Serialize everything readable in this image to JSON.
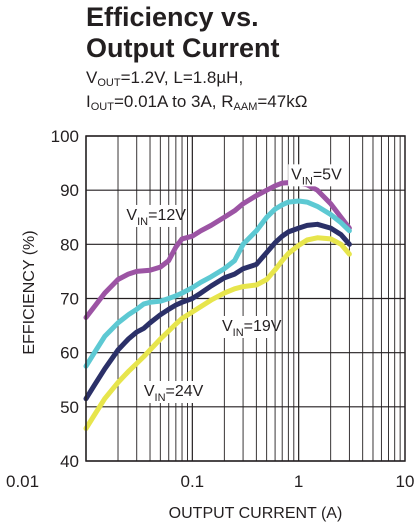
{
  "header": {
    "title_line1": "Efficiency vs.",
    "title_line2": "Output Current",
    "cond1": {
      "v": "V",
      "v_sub": "OUT",
      "rest1": "=1.2V, L=1.8µH,"
    },
    "cond2": {
      "i": "I",
      "i_sub": "OUT",
      "mid": "=0.01A to 3A, R",
      "r_sub": "AAM",
      "rest": "=47kΩ"
    }
  },
  "chart_data": {
    "type": "line",
    "title": "Efficiency vs. Output Current",
    "xlabel": "OUTPUT CURRENT (A)",
    "ylabel": "EFFICIENCY (%)",
    "xscale": "log",
    "xlim": [
      0.01,
      10
    ],
    "ylim": [
      40,
      100
    ],
    "xticks": [
      {
        "value": 0.01,
        "label": "0.01"
      },
      {
        "value": 0.1,
        "label": "0.1"
      },
      {
        "value": 1,
        "label": "1"
      },
      {
        "value": 10,
        "label": "10"
      }
    ],
    "yticks": [
      40,
      50,
      60,
      70,
      80,
      90,
      100
    ],
    "grid": true,
    "series": [
      {
        "name": "VIN=5V",
        "label_main": "V",
        "label_sub": "IN",
        "label_rest": "=5V",
        "color": "#9c54a4",
        "label_at": [
          0.85,
          92
        ],
        "points": [
          [
            0.01,
            66.5
          ],
          [
            0.012,
            68.5
          ],
          [
            0.015,
            71
          ],
          [
            0.02,
            73.5
          ],
          [
            0.025,
            74.5
          ],
          [
            0.03,
            75
          ],
          [
            0.04,
            75.2
          ],
          [
            0.05,
            75.8
          ],
          [
            0.06,
            77
          ],
          [
            0.07,
            79.5
          ],
          [
            0.08,
            81
          ],
          [
            0.1,
            81.5
          ],
          [
            0.12,
            82.5
          ],
          [
            0.15,
            83.5
          ],
          [
            0.2,
            85
          ],
          [
            0.25,
            86.2
          ],
          [
            0.3,
            87.5
          ],
          [
            0.4,
            89
          ],
          [
            0.5,
            90
          ],
          [
            0.6,
            90.8
          ],
          [
            0.7,
            91.3
          ],
          [
            0.8,
            91.4
          ],
          [
            1.0,
            91.3
          ],
          [
            1.2,
            91
          ],
          [
            1.5,
            90
          ],
          [
            2.0,
            87.5
          ],
          [
            2.5,
            85
          ],
          [
            3.0,
            83
          ]
        ]
      },
      {
        "name": "VIN=12V",
        "label_main": "V",
        "label_sub": "IN",
        "label_rest": "=12V",
        "color": "#5dc9d3",
        "label_at": [
          0.024,
          84.5
        ],
        "points": [
          [
            0.01,
            57.5
          ],
          [
            0.012,
            60
          ],
          [
            0.015,
            63
          ],
          [
            0.02,
            65.5
          ],
          [
            0.025,
            67
          ],
          [
            0.03,
            68
          ],
          [
            0.035,
            69
          ],
          [
            0.04,
            69.3
          ],
          [
            0.05,
            69.5
          ],
          [
            0.06,
            70
          ],
          [
            0.07,
            70.5
          ],
          [
            0.08,
            71
          ],
          [
            0.1,
            72
          ],
          [
            0.12,
            73
          ],
          [
            0.15,
            74
          ],
          [
            0.2,
            75.5
          ],
          [
            0.25,
            77
          ],
          [
            0.3,
            80
          ],
          [
            0.4,
            82.5
          ],
          [
            0.5,
            85
          ],
          [
            0.6,
            86.5
          ],
          [
            0.7,
            87.3
          ],
          [
            0.8,
            87.8
          ],
          [
            1.0,
            88
          ],
          [
            1.2,
            87.8
          ],
          [
            1.5,
            87
          ],
          [
            2.0,
            85.5
          ],
          [
            2.5,
            84
          ],
          [
            3.0,
            82.5
          ]
        ]
      },
      {
        "name": "VIN=19V",
        "label_main": "V",
        "label_sub": "IN",
        "label_rest": "=19V",
        "color": "#2b3068",
        "label_at": [
          0.19,
          64
        ],
        "points": [
          [
            0.01,
            51.5
          ],
          [
            0.012,
            54
          ],
          [
            0.015,
            57
          ],
          [
            0.02,
            60.5
          ],
          [
            0.025,
            62.5
          ],
          [
            0.03,
            63.8
          ],
          [
            0.035,
            64.5
          ],
          [
            0.04,
            65.5
          ],
          [
            0.05,
            67
          ],
          [
            0.06,
            68
          ],
          [
            0.07,
            68.8
          ],
          [
            0.08,
            69.3
          ],
          [
            0.1,
            70
          ],
          [
            0.12,
            71
          ],
          [
            0.15,
            72.3
          ],
          [
            0.2,
            73.8
          ],
          [
            0.25,
            74.5
          ],
          [
            0.3,
            75.5
          ],
          [
            0.4,
            76.3
          ],
          [
            0.5,
            78.5
          ],
          [
            0.6,
            80.3
          ],
          [
            0.7,
            81.5
          ],
          [
            0.8,
            82.3
          ],
          [
            1.0,
            83
          ],
          [
            1.2,
            83.5
          ],
          [
            1.5,
            83.7
          ],
          [
            2.0,
            83
          ],
          [
            2.5,
            81.8
          ],
          [
            3.0,
            80
          ]
        ]
      },
      {
        "name": "VIN=24V",
        "label_main": "V",
        "label_sub": "IN",
        "label_rest": "=24V",
        "color": "#e7e54c",
        "label_at": [
          0.035,
          52
        ],
        "points": [
          [
            0.01,
            46
          ],
          [
            0.012,
            48.5
          ],
          [
            0.015,
            51.5
          ],
          [
            0.02,
            54.5
          ],
          [
            0.025,
            56.5
          ],
          [
            0.03,
            58
          ],
          [
            0.035,
            59.3
          ],
          [
            0.04,
            60.5
          ],
          [
            0.05,
            62.5
          ],
          [
            0.06,
            64
          ],
          [
            0.07,
            65.3
          ],
          [
            0.08,
            66.3
          ],
          [
            0.1,
            67.5
          ],
          [
            0.12,
            68.5
          ],
          [
            0.15,
            69.7
          ],
          [
            0.2,
            71
          ],
          [
            0.25,
            71.8
          ],
          [
            0.3,
            72.2
          ],
          [
            0.4,
            72.5
          ],
          [
            0.5,
            73.5
          ],
          [
            0.6,
            75.3
          ],
          [
            0.7,
            77
          ],
          [
            0.8,
            78.3
          ],
          [
            1.0,
            79.8
          ],
          [
            1.2,
            80.8
          ],
          [
            1.5,
            81.2
          ],
          [
            2.0,
            81
          ],
          [
            2.5,
            80
          ],
          [
            3.0,
            78.2
          ]
        ]
      }
    ]
  }
}
